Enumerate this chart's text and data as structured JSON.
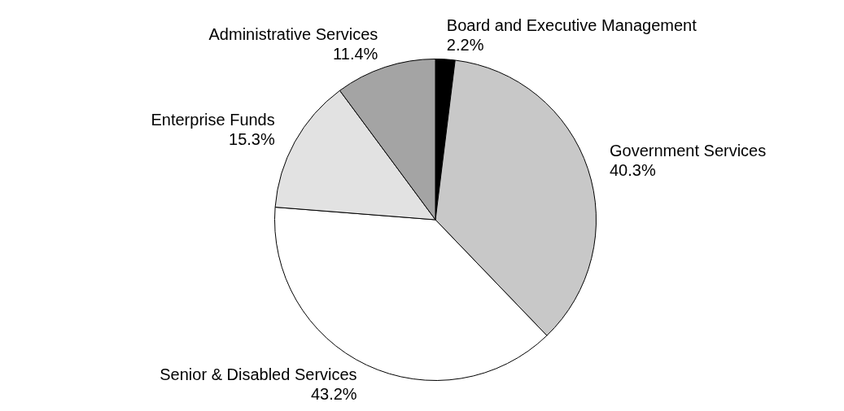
{
  "chart_data": {
    "type": "pie",
    "categories": [
      "Board and Executive Management",
      "Government Services",
      "Senior & Disabled Services",
      "Enterprise Funds",
      "Administrative Services"
    ],
    "values": [
      2.2,
      40.3,
      43.2,
      15.3,
      11.4
    ],
    "value_labels": [
      "2.2%",
      "40.3%",
      "43.2%",
      "15.3%",
      "11.4%"
    ],
    "colors": [
      "#000000",
      "#c8c8c8",
      "#ffffff",
      "#e2e2e2",
      "#a4a4a4"
    ],
    "legend": false
  }
}
